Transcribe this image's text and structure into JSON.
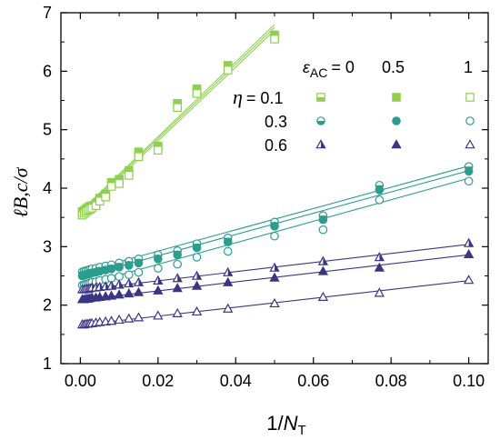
{
  "chart_data": {
    "type": "scatter",
    "xlabel_prefix": "1/",
    "xlabel_var": "N",
    "xlabel_sub": "T",
    "ylabel": "ℓB,c/σ",
    "xlim": [
      -0.005,
      0.105
    ],
    "ylim": [
      1,
      7
    ],
    "xticks": [
      "0.00",
      "0.02",
      "0.04",
      "0.06",
      "0.08",
      "0.10"
    ],
    "yticks": [
      "1",
      "2",
      "3",
      "4",
      "5",
      "6",
      "7"
    ],
    "legend": {
      "eps_label": "ε",
      "eps_sub": "AC",
      "eps_values": [
        "= 0",
        "0.5",
        "1"
      ],
      "eta_label": "η",
      "eta_rows": [
        "= 0.1",
        "0.3",
        "0.6"
      ]
    },
    "colors": {
      "eta_0.1": "#8fd14f",
      "eta_0.3": "#2a9d8f",
      "eta_0.6": "#3b3585"
    },
    "series": [
      {
        "eta": 0.1,
        "eps": 0,
        "marker": "half-square",
        "color": "#8fd14f",
        "x": [
          0.0005,
          0.001,
          0.0015,
          0.002,
          0.0025,
          0.003,
          0.004,
          0.005,
          0.0065,
          0.008,
          0.01,
          0.0125,
          0.015,
          0.02,
          0.025,
          0.03,
          0.038,
          0.05
        ],
        "y": [
          3.58,
          3.61,
          3.63,
          3.65,
          3.66,
          3.69,
          3.72,
          3.8,
          3.88,
          4.06,
          4.12,
          4.25,
          4.58,
          4.68,
          5.42,
          5.66,
          6.06,
          6.58
        ],
        "fit": [
          3.58,
          6.75
        ]
      },
      {
        "eta": 0.1,
        "eps": 0.5,
        "marker": "filled-square",
        "color": "#8fd14f",
        "x": [
          0.0005,
          0.001,
          0.0015,
          0.002,
          0.0025,
          0.003,
          0.004,
          0.005,
          0.0065,
          0.008,
          0.01,
          0.0125,
          0.015,
          0.02,
          0.025,
          0.03,
          0.038,
          0.05
        ],
        "y": [
          3.6,
          3.62,
          3.65,
          3.67,
          3.69,
          3.7,
          3.74,
          3.83,
          3.9,
          4.1,
          4.15,
          4.3,
          4.62,
          4.72,
          5.45,
          5.7,
          6.1,
          6.62
        ],
        "fit": [
          3.6,
          6.8
        ]
      },
      {
        "eta": 0.1,
        "eps": 1,
        "marker": "open-square",
        "color": "#8fd14f",
        "x": [
          0.0005,
          0.001,
          0.0015,
          0.002,
          0.0025,
          0.003,
          0.004,
          0.005,
          0.0065,
          0.008,
          0.01,
          0.0125,
          0.015,
          0.02,
          0.025,
          0.03,
          0.038,
          0.05
        ],
        "y": [
          3.54,
          3.57,
          3.6,
          3.62,
          3.64,
          3.66,
          3.7,
          3.78,
          3.85,
          4.03,
          4.08,
          4.22,
          4.54,
          4.65,
          5.38,
          5.62,
          6.02,
          6.55
        ],
        "fit": [
          3.55,
          6.7
        ]
      },
      {
        "eta": 0.3,
        "eps": 0,
        "marker": "half-circle",
        "color": "#2a9d8f",
        "x": [
          0.0005,
          0.001,
          0.0015,
          0.002,
          0.0025,
          0.003,
          0.004,
          0.005,
          0.0065,
          0.008,
          0.01,
          0.0125,
          0.015,
          0.02,
          0.025,
          0.03,
          0.038,
          0.05,
          0.0625,
          0.077,
          0.1
        ],
        "y": [
          2.57,
          2.58,
          2.59,
          2.6,
          2.61,
          2.62,
          2.63,
          2.65,
          2.67,
          2.69,
          2.72,
          2.75,
          2.79,
          2.86,
          2.93,
          3.05,
          3.15,
          3.42,
          3.53,
          4.05,
          4.37
        ],
        "fit": [
          2.56,
          4.38
        ]
      },
      {
        "eta": 0.3,
        "eps": 0.5,
        "marker": "filled-circle",
        "color": "#2a9d8f",
        "x": [
          0.0005,
          0.001,
          0.0015,
          0.002,
          0.0025,
          0.003,
          0.004,
          0.005,
          0.0065,
          0.008,
          0.01,
          0.0125,
          0.015,
          0.02,
          0.025,
          0.03,
          0.038,
          0.05,
          0.0625,
          0.077,
          0.1
        ],
        "y": [
          2.5,
          2.51,
          2.52,
          2.53,
          2.54,
          2.55,
          2.56,
          2.58,
          2.6,
          2.62,
          2.65,
          2.68,
          2.72,
          2.79,
          2.86,
          2.98,
          3.08,
          3.35,
          3.46,
          3.97,
          4.29
        ],
        "fit": [
          2.48,
          4.3
        ]
      },
      {
        "eta": 0.3,
        "eps": 1,
        "marker": "open-circle",
        "color": "#2a9d8f",
        "x": [
          0.0005,
          0.001,
          0.0015,
          0.002,
          0.0025,
          0.003,
          0.004,
          0.005,
          0.0065,
          0.008,
          0.01,
          0.0125,
          0.015,
          0.02,
          0.025,
          0.03,
          0.038,
          0.05,
          0.0625,
          0.077,
          0.1
        ],
        "y": [
          2.34,
          2.35,
          2.36,
          2.37,
          2.38,
          2.39,
          2.4,
          2.42,
          2.44,
          2.46,
          2.49,
          2.52,
          2.56,
          2.63,
          2.7,
          2.82,
          2.92,
          3.18,
          3.29,
          3.8,
          4.12
        ],
        "fit": [
          2.33,
          4.17
        ]
      },
      {
        "eta": 0.6,
        "eps": 0,
        "marker": "half-triangle",
        "color": "#3b3585",
        "x": [
          0.0005,
          0.001,
          0.0015,
          0.002,
          0.0025,
          0.003,
          0.004,
          0.005,
          0.0065,
          0.008,
          0.01,
          0.0125,
          0.015,
          0.02,
          0.025,
          0.03,
          0.038,
          0.05,
          0.0625,
          0.077,
          0.1
        ],
        "y": [
          2.27,
          2.27,
          2.28,
          2.28,
          2.29,
          2.3,
          2.3,
          2.31,
          2.32,
          2.33,
          2.35,
          2.37,
          2.39,
          2.42,
          2.46,
          2.5,
          2.56,
          2.64,
          2.75,
          2.82,
          3.06
        ],
        "fit": [
          2.26,
          3.04
        ]
      },
      {
        "eta": 0.6,
        "eps": 0.5,
        "marker": "filled-triangle",
        "color": "#3b3585",
        "x": [
          0.0005,
          0.001,
          0.0015,
          0.002,
          0.0025,
          0.003,
          0.004,
          0.005,
          0.0065,
          0.008,
          0.01,
          0.0125,
          0.015,
          0.02,
          0.025,
          0.03,
          0.038,
          0.05,
          0.0625,
          0.077,
          0.1
        ],
        "y": [
          2.1,
          2.1,
          2.11,
          2.11,
          2.12,
          2.13,
          2.13,
          2.14,
          2.15,
          2.16,
          2.18,
          2.2,
          2.22,
          2.25,
          2.29,
          2.33,
          2.39,
          2.47,
          2.58,
          2.64,
          2.87
        ],
        "fit": [
          2.09,
          2.86
        ]
      },
      {
        "eta": 0.6,
        "eps": 1,
        "marker": "open-triangle",
        "color": "#3b3585",
        "x": [
          0.0005,
          0.001,
          0.0015,
          0.002,
          0.0025,
          0.003,
          0.004,
          0.005,
          0.0065,
          0.008,
          0.01,
          0.0125,
          0.015,
          0.02,
          0.025,
          0.03,
          0.038,
          0.05,
          0.0625,
          0.077,
          0.1
        ],
        "y": [
          1.67,
          1.67,
          1.68,
          1.68,
          1.69,
          1.69,
          1.7,
          1.71,
          1.72,
          1.73,
          1.75,
          1.77,
          1.79,
          1.82,
          1.86,
          1.89,
          1.94,
          2.03,
          2.14,
          2.21,
          2.43
        ],
        "fit": [
          1.66,
          2.42
        ]
      }
    ]
  }
}
